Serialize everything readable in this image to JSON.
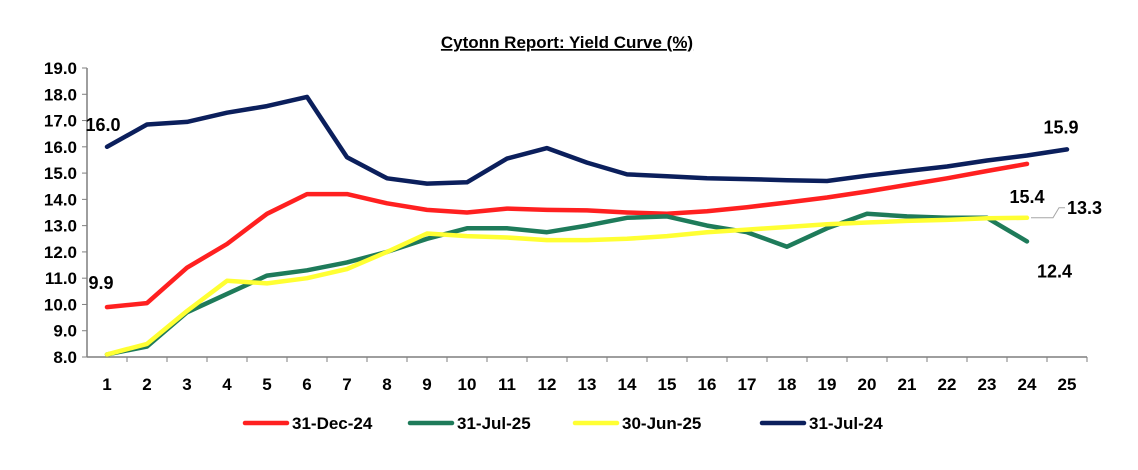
{
  "chart_data": {
    "type": "line",
    "title": "Cytonn Report: Yield Curve (%)",
    "xlabel": "",
    "ylabel": "",
    "x": [
      1,
      2,
      3,
      4,
      5,
      6,
      7,
      8,
      9,
      10,
      11,
      12,
      13,
      14,
      15,
      16,
      17,
      18,
      19,
      20,
      21,
      22,
      23,
      24,
      25
    ],
    "ylim": [
      8.0,
      19.0
    ],
    "yticks": [
      "8.0",
      "9.0",
      "10.0",
      "11.0",
      "12.0",
      "13.0",
      "14.0",
      "15.0",
      "16.0",
      "17.0",
      "18.0",
      "19.0"
    ],
    "grid": false,
    "legend_position": "bottom",
    "series": [
      {
        "name": "31-Dec-24",
        "color": "#ff2020",
        "values": [
          9.9,
          10.05,
          11.4,
          12.3,
          13.45,
          14.2,
          14.2,
          13.85,
          13.6,
          13.5,
          13.65,
          13.6,
          13.58,
          13.5,
          13.45,
          13.55,
          13.7,
          13.88,
          14.07,
          14.3,
          14.55,
          14.8,
          15.08,
          15.35,
          null
        ]
      },
      {
        "name": "31-Jul-25",
        "color": "#1e7b5a",
        "values": [
          8.1,
          8.4,
          9.7,
          10.4,
          11.1,
          11.3,
          11.6,
          12.0,
          12.5,
          12.9,
          12.9,
          12.75,
          13.0,
          13.3,
          13.35,
          13.0,
          12.75,
          12.2,
          12.9,
          13.45,
          13.35,
          13.3,
          13.3,
          12.4,
          null
        ]
      },
      {
        "name": "30-Jun-25",
        "color": "#ffff33",
        "values": [
          8.1,
          8.5,
          9.75,
          10.9,
          10.8,
          11.0,
          11.35,
          12.0,
          12.7,
          12.6,
          12.55,
          12.45,
          12.45,
          12.5,
          12.6,
          12.75,
          12.85,
          12.95,
          13.05,
          13.12,
          13.18,
          13.22,
          13.28,
          13.3,
          null
        ]
      },
      {
        "name": "31-Jul-24",
        "color": "#0b1f5c",
        "values": [
          16.0,
          16.85,
          16.95,
          17.3,
          17.55,
          17.9,
          15.6,
          14.8,
          14.6,
          14.65,
          15.55,
          15.95,
          15.4,
          14.95,
          14.88,
          14.8,
          14.77,
          14.73,
          14.7,
          14.9,
          15.08,
          15.25,
          15.48,
          15.67,
          15.9
        ]
      }
    ],
    "annotations": [
      {
        "text": "16.0",
        "series": "31-Jul-24",
        "x": 1
      },
      {
        "text": "9.9",
        "series": "31-Dec-24",
        "x": 1
      },
      {
        "text": "15.9",
        "series": "31-Jul-24",
        "x": 25
      },
      {
        "text": "15.4",
        "series": "31-Dec-24",
        "x": 24
      },
      {
        "text": "13.3",
        "series": "30-Jun-25",
        "x": 24
      },
      {
        "text": "12.4",
        "series": "31-Jul-25",
        "x": 24
      }
    ]
  }
}
